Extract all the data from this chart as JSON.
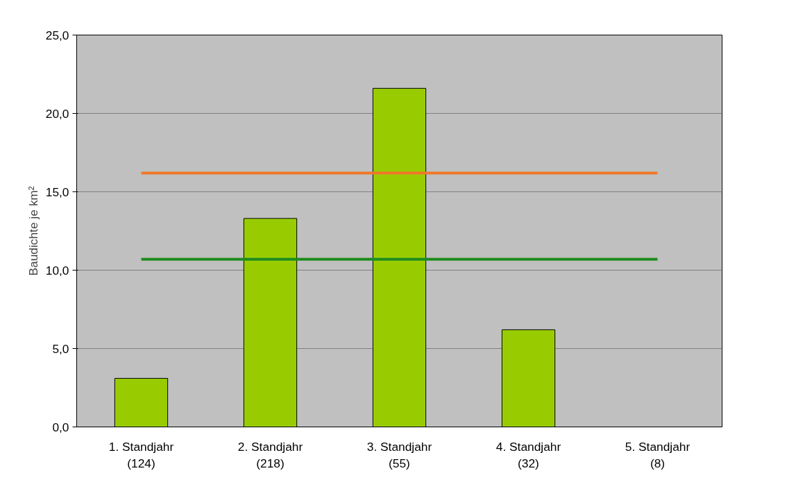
{
  "chart_data": {
    "type": "bar",
    "ylabel": "Baudichte je km²",
    "categories": [
      "1. Standjahr\n(124)",
      "2. Standjahr\n(218)",
      "3. Standjahr\n(55)",
      "4. Standjahr\n(32)",
      "5. Standjahr\n(8)"
    ],
    "series": [
      {
        "color": "#99cc00",
        "values": [
          3.1,
          13.3,
          21.6,
          6.2,
          null
        ]
      },
      {
        "type": "line",
        "color": "#f07828",
        "values": [
          16.2,
          16.2,
          16.2,
          16.2,
          16.2
        ]
      },
      {
        "type": "line",
        "color": "#1e8c1e",
        "values": [
          10.7,
          10.7,
          10.7,
          10.7,
          10.7
        ]
      }
    ],
    "ylim": [
      0,
      25
    ],
    "yticks": [
      {
        "value": 0,
        "label": "0,0"
      },
      {
        "value": 5,
        "label": "5,0"
      },
      {
        "value": 10,
        "label": "10,0"
      },
      {
        "value": 15,
        "label": "15,0"
      },
      {
        "value": 20,
        "label": "20,0"
      },
      {
        "value": 25,
        "label": "25,0"
      }
    ],
    "grid": "y",
    "marker": "none",
    "line_style": "solid"
  }
}
